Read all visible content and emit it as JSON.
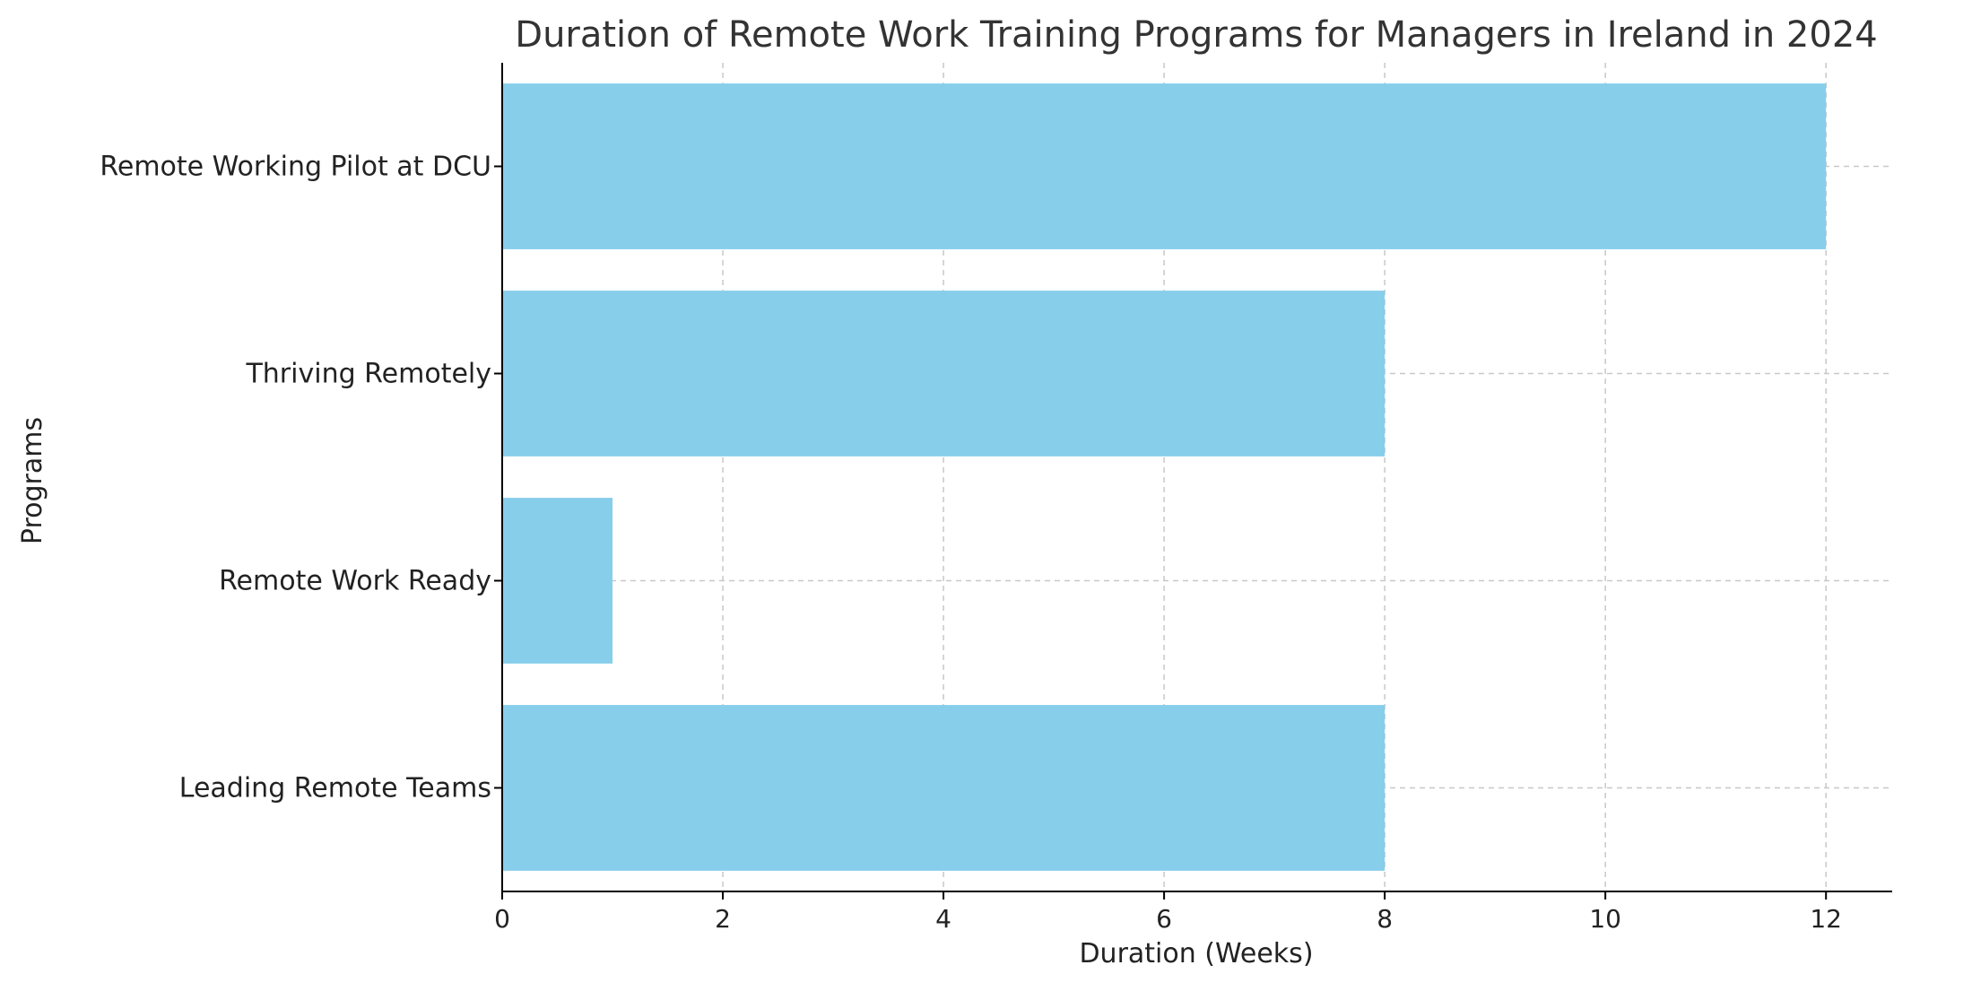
{
  "chart_data": {
    "type": "bar",
    "orientation": "horizontal",
    "title": "Duration of Remote Work Training Programs for Managers in Ireland in 2024",
    "xlabel": "Duration (Weeks)",
    "ylabel": "Programs",
    "categories": [
      "Leading Remote Teams",
      "Remote Work Ready",
      "Thriving Remotely",
      "Remote Working Pilot at DCU"
    ],
    "values": [
      8,
      1,
      8,
      12
    ],
    "xlim": [
      0,
      12.6
    ],
    "xticks": [
      0,
      2,
      4,
      6,
      8,
      10,
      12
    ],
    "grid": true,
    "bar_color": "#87CEEB",
    "text_color": "#333333",
    "axis_color": "#000000",
    "grid_color": "#c8c8c8"
  }
}
